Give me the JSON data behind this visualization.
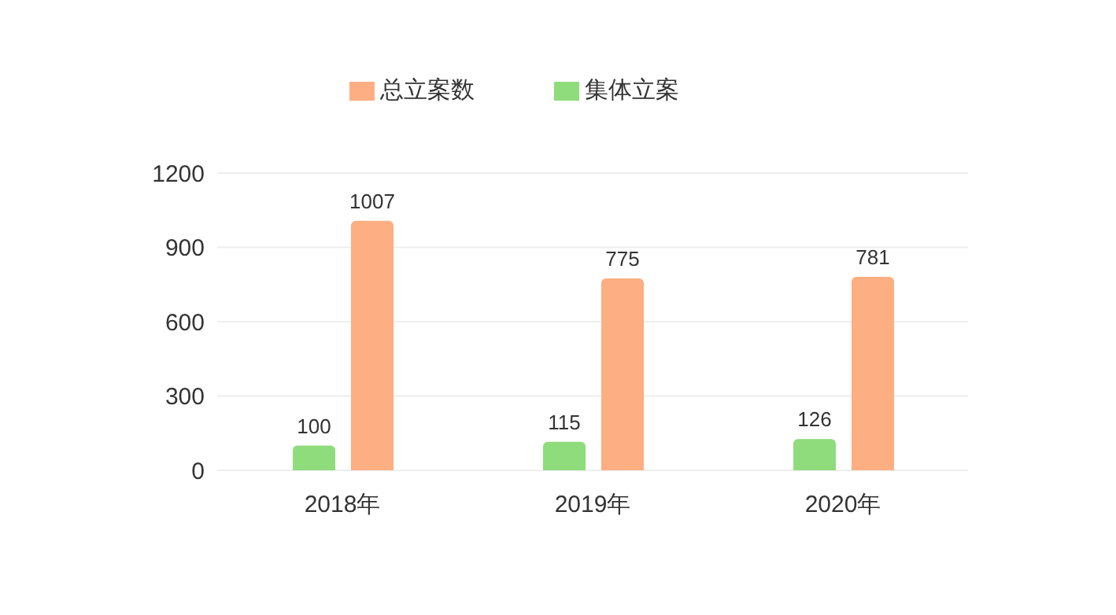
{
  "chart_data": {
    "type": "bar",
    "categories": [
      "2018年",
      "2019年",
      "2020年"
    ],
    "series": [
      {
        "name": "集体立案",
        "color": "#8fdc7c",
        "values": [
          100,
          115,
          126
        ]
      },
      {
        "name": "总立案数",
        "color": "#fdae83",
        "values": [
          1007,
          775,
          781
        ]
      }
    ],
    "ylim": [
      0,
      1200
    ],
    "yticks": [
      0,
      300,
      600,
      900,
      1200
    ],
    "grid": "y",
    "legend": "top",
    "data_labels": true
  }
}
